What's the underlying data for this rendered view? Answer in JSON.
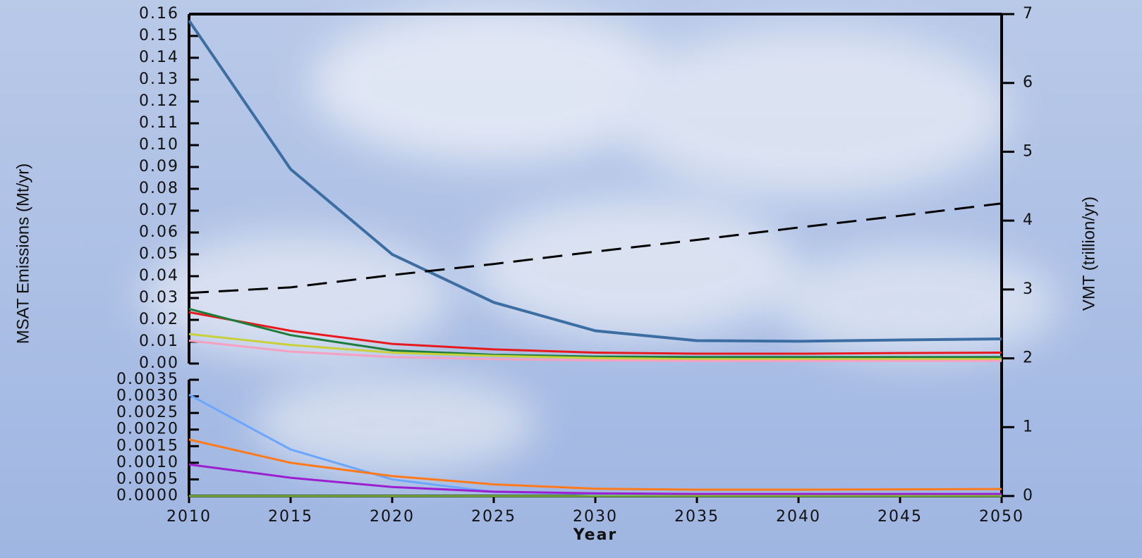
{
  "chart_data": [
    {
      "type": "line",
      "ylabel": "MSAT Emissions (Mt/yr)",
      "y2label": "VMT (trillion/yr)",
      "x": [
        2010,
        2015,
        2020,
        2025,
        2030,
        2035,
        2040,
        2045,
        2050
      ],
      "xlim": [
        2010,
        2050
      ],
      "ylim": [
        0,
        0.16
      ],
      "yticks": [
        {
          "value": 0,
          "label": "0.00"
        },
        0.01,
        0.02,
        0.03,
        0.04,
        0.05,
        0.06,
        0.07,
        0.08,
        0.09,
        {
          "value": 0.1,
          "label": "0.10"
        },
        0.11,
        0.12,
        0.13,
        0.14,
        0.15,
        0.16
      ],
      "y2lim": [
        0,
        7
      ],
      "y2ticks": [
        0,
        1,
        2,
        3,
        4,
        5,
        6,
        7
      ],
      "series": [
        {
          "color": "#3d6ea3",
          "values": [
            0.157,
            0.089,
            0.05,
            0.028,
            0.015,
            0.0105,
            0.0102,
            0.0108,
            0.0113
          ]
        },
        {
          "color": "#e8191c",
          "values": [
            0.0235,
            0.015,
            0.009,
            0.0065,
            0.005,
            0.0045,
            0.0045,
            0.0048,
            0.005
          ]
        },
        {
          "color": "#1e7d3a",
          "values": [
            0.025,
            0.013,
            0.006,
            0.004,
            0.0032,
            0.003,
            0.003,
            0.003,
            0.003
          ]
        },
        {
          "color": "#c8d13a",
          "values": [
            0.0135,
            0.0085,
            0.005,
            0.0035,
            0.0025,
            0.002,
            0.002,
            0.002,
            0.002
          ]
        },
        {
          "color": "#f5a0c0",
          "values": [
            0.0105,
            0.0055,
            0.003,
            0.002,
            0.0015,
            0.0012,
            0.0012,
            0.0012,
            0.0012
          ]
        },
        {
          "color": "#000000",
          "dashed": true,
          "axis": "y2",
          "values": [
            2.95,
            3.03,
            3.21,
            3.37,
            3.55,
            3.72,
            3.9,
            4.07,
            4.25
          ]
        }
      ]
    },
    {
      "type": "line",
      "xlabel": "Year",
      "x": [
        2010,
        2015,
        2020,
        2025,
        2030,
        2035,
        2040,
        2045,
        2050
      ],
      "xlim": [
        2010,
        2050
      ],
      "xticks": [
        2010,
        2015,
        2020,
        2025,
        2030,
        2035,
        2040,
        2045,
        2050
      ],
      "ylim": [
        0,
        0.0035
      ],
      "yticks": [
        {
          "value": 0,
          "label": "0.0000"
        },
        0.0005,
        {
          "value": 0.001,
          "label": "0.0010"
        },
        0.0015,
        {
          "value": 0.002,
          "label": "0.0020"
        },
        0.0025,
        {
          "value": 0.003,
          "label": "0.0030"
        },
        0.0035
      ],
      "series": [
        {
          "color": "#6aa6ff",
          "values": [
            0.00305,
            0.0014,
            0.0005,
            0.00012,
            6e-05,
            4e-05,
            4e-05,
            4e-05,
            4e-05
          ]
        },
        {
          "color": "#ff7a1a",
          "values": [
            0.0017,
            0.001,
            0.0006,
            0.00035,
            0.00022,
            0.00019,
            0.00019,
            0.0002,
            0.00021
          ]
        },
        {
          "color": "#9b1fd0",
          "values": [
            0.00095,
            0.00055,
            0.00027,
            0.00013,
            8e-05,
            6e-05,
            6e-05,
            6e-05,
            6e-05
          ]
        },
        {
          "color": "#7cb342",
          "values": [
            0,
            0,
            0,
            0,
            0,
            0,
            0,
            0,
            0
          ]
        }
      ]
    }
  ]
}
